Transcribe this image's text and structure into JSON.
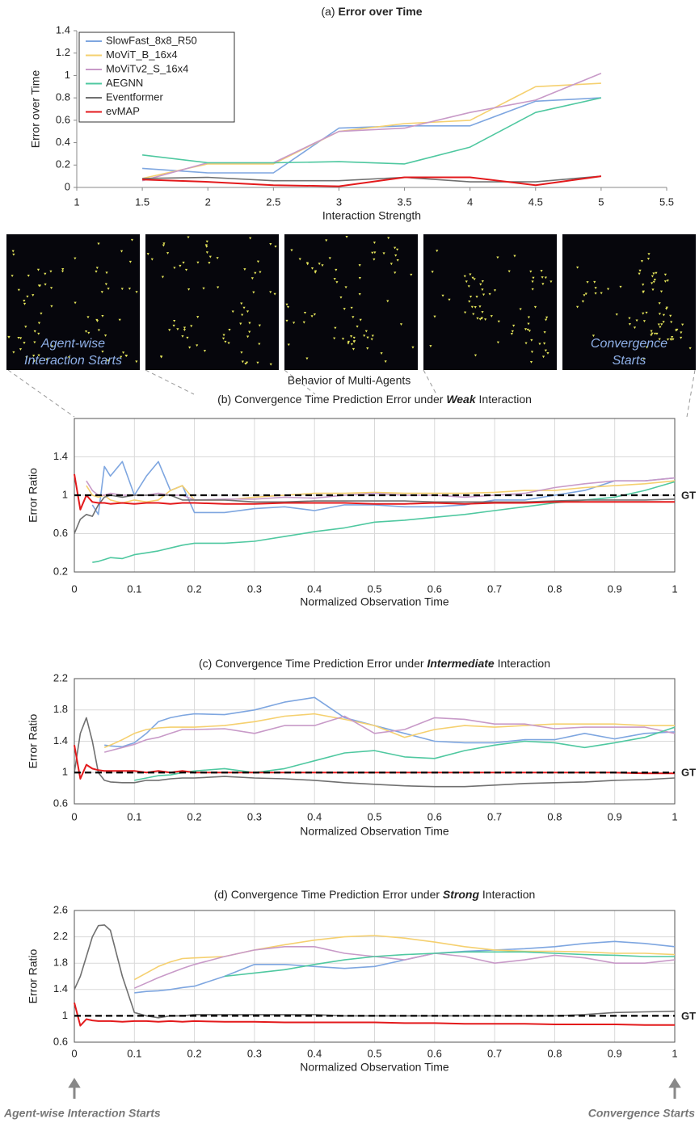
{
  "agent_frames": {
    "title": "Behavior of Multi-Agents",
    "first_frame_caption": [
      "Agent-wise",
      "Interaction Starts"
    ],
    "last_frame_caption": [
      "Convergence",
      "Starts"
    ]
  },
  "chart_data": [
    {
      "type": "line",
      "title": [
        "(a) ",
        "Error over Time"
      ],
      "title_emphasis": "bold",
      "x_label": "Interaction Strength",
      "y_label": "Error over Time",
      "x": [
        1.5,
        2,
        2.5,
        3,
        3.5,
        4,
        4.5,
        5
      ],
      "xlim": [
        1,
        5.5
      ],
      "xticks": [
        1,
        1.5,
        2,
        2.5,
        3,
        3.5,
        4,
        4.5,
        5,
        5.5
      ],
      "ylim": [
        0,
        1.4
      ],
      "yticks": [
        0,
        0.2,
        0.4,
        0.6,
        0.8,
        1,
        1.2,
        1.4
      ],
      "grid": false,
      "legend": "top-left",
      "series": [
        {
          "name": "SlowFast_8x8_R50",
          "color": "#7ea6e0",
          "values": [
            0.17,
            0.13,
            0.13,
            0.53,
            0.55,
            0.55,
            0.77,
            0.8
          ]
        },
        {
          "name": "MoViT_B_16x4",
          "color": "#f5d06f",
          "values": [
            0.08,
            0.21,
            0.21,
            0.5,
            0.57,
            0.6,
            0.9,
            0.93
          ]
        },
        {
          "name": "MoViTv2_S_16x4",
          "color": "#c89ac8",
          "values": [
            0.06,
            0.22,
            0.22,
            0.5,
            0.53,
            0.67,
            0.78,
            1.02
          ]
        },
        {
          "name": "AEGNN",
          "color": "#4fc8a0",
          "values": [
            0.29,
            0.22,
            0.22,
            0.23,
            0.21,
            0.36,
            0.67,
            0.8
          ]
        },
        {
          "name": "Eventformer",
          "color": "#707070",
          "values": [
            0.08,
            0.09,
            0.06,
            0.06,
            0.09,
            0.05,
            0.05,
            0.1
          ]
        },
        {
          "name": "evMAP",
          "color": "#e31a1c",
          "values": [
            0.07,
            0.05,
            0.02,
            0.01,
            0.09,
            0.09,
            0.02,
            0.1
          ]
        }
      ]
    },
    {
      "type": "line",
      "title": [
        "(b) Convergence Time Prediction Error under ",
        "Weak",
        " Interaction"
      ],
      "title_emphasis": "bold-italic",
      "x_label": "Normalized Observation Time",
      "y_label": "Error Ratio",
      "x": [
        0,
        0.01,
        0.02,
        0.03,
        0.04,
        0.05,
        0.06,
        0.08,
        0.1,
        0.12,
        0.14,
        0.16,
        0.18,
        0.2,
        0.25,
        0.3,
        0.35,
        0.4,
        0.45,
        0.5,
        0.55,
        0.6,
        0.65,
        0.7,
        0.75,
        0.8,
        0.85,
        0.9,
        0.95,
        1
      ],
      "xlim": [
        0,
        1
      ],
      "xticks": [
        0,
        0.1,
        0.2,
        0.3,
        0.4,
        0.5,
        0.6,
        0.7,
        0.8,
        0.9,
        1
      ],
      "ylim": [
        0.2,
        1.8
      ],
      "yticks": [
        0.2,
        0.6,
        1,
        1.4
      ],
      "grid": true,
      "reference": {
        "value": 1,
        "label": "GT"
      },
      "series": [
        {
          "color": "#7ea6e0",
          "values": [
            null,
            null,
            null,
            0.9,
            0.8,
            1.3,
            1.2,
            1.35,
            1.0,
            1.2,
            1.35,
            1.05,
            1.1,
            0.82,
            0.82,
            0.86,
            0.88,
            0.84,
            0.9,
            0.9,
            0.88,
            0.88,
            0.9,
            0.95,
            0.95,
            1.0,
            1.05,
            1.15,
            1.15,
            1.18
          ]
        },
        {
          "color": "#f5d06f",
          "values": [
            null,
            null,
            1.1,
            1.0,
            0.98,
            1.0,
            0.95,
            0.92,
            0.95,
            0.93,
            0.95,
            1.05,
            1.1,
            0.95,
            0.95,
            0.98,
            1.0,
            1.02,
            1.02,
            1.03,
            1.02,
            1.02,
            1.02,
            1.03,
            1.05,
            1.05,
            1.08,
            1.1,
            1.12,
            1.15
          ]
        },
        {
          "color": "#c89ac8",
          "values": [
            null,
            null,
            1.15,
            1.05,
            1.0,
            1.0,
            1.02,
            1.0,
            1.0,
            1.0,
            1.02,
            1.0,
            1.0,
            0.95,
            0.96,
            0.96,
            0.98,
            0.97,
            1.0,
            1.02,
            1.0,
            1.0,
            0.98,
            1.0,
            1.02,
            1.08,
            1.12,
            1.15,
            1.15,
            1.18
          ]
        },
        {
          "color": "#4fc8a0",
          "values": [
            null,
            null,
            null,
            0.3,
            0.31,
            0.33,
            0.35,
            0.34,
            0.38,
            0.4,
            0.42,
            0.45,
            0.48,
            0.5,
            0.5,
            0.52,
            0.57,
            0.62,
            0.66,
            0.72,
            0.74,
            0.77,
            0.8,
            0.84,
            0.88,
            0.92,
            0.95,
            0.98,
            1.05,
            1.14
          ]
        },
        {
          "color": "#707070",
          "values": [
            0.6,
            0.75,
            0.8,
            0.78,
            0.9,
            0.98,
            1.0,
            0.98,
            1.0,
            1.0,
            1.0,
            1.0,
            0.95,
            0.95,
            0.95,
            0.93,
            0.93,
            0.94,
            0.94,
            0.94,
            0.94,
            0.93,
            0.93,
            0.93,
            0.93,
            0.94,
            0.95,
            0.95,
            0.95,
            0.96
          ]
        },
        {
          "color": "#e31a1c",
          "values": [
            1.22,
            0.85,
            1.0,
            0.93,
            0.92,
            0.92,
            0.91,
            0.92,
            0.91,
            0.92,
            0.92,
            0.91,
            0.92,
            0.92,
            0.91,
            0.91,
            0.92,
            0.92,
            0.92,
            0.91,
            0.91,
            0.92,
            0.91,
            0.92,
            0.92,
            0.93,
            0.93,
            0.93,
            0.93,
            0.93
          ]
        }
      ]
    },
    {
      "type": "line",
      "title": [
        "(c) Convergence Time Prediction Error under ",
        "Intermediate",
        " Interaction"
      ],
      "title_emphasis": "bold-italic",
      "x_label": "Normalized Observation Time",
      "y_label": "Error Ratio",
      "x": [
        0,
        0.01,
        0.02,
        0.03,
        0.04,
        0.05,
        0.06,
        0.08,
        0.1,
        0.12,
        0.14,
        0.16,
        0.18,
        0.2,
        0.25,
        0.3,
        0.35,
        0.4,
        0.45,
        0.5,
        0.55,
        0.6,
        0.65,
        0.7,
        0.75,
        0.8,
        0.85,
        0.9,
        0.95,
        1
      ],
      "xlim": [
        0,
        1
      ],
      "xticks": [
        0,
        0.1,
        0.2,
        0.3,
        0.4,
        0.5,
        0.6,
        0.7,
        0.8,
        0.9,
        1
      ],
      "ylim": [
        0.6,
        2.2
      ],
      "yticks": [
        0.6,
        1,
        1.4,
        1.8,
        2.2
      ],
      "grid": true,
      "reference": {
        "value": 1,
        "label": "GT"
      },
      "series": [
        {
          "color": "#7ea6e0",
          "values": [
            null,
            null,
            null,
            null,
            null,
            1.35,
            1.34,
            1.33,
            1.38,
            1.5,
            1.65,
            1.7,
            1.73,
            1.75,
            1.74,
            1.8,
            1.9,
            1.96,
            1.7,
            1.6,
            1.5,
            1.4,
            1.38,
            1.38,
            1.42,
            1.42,
            1.5,
            1.43,
            1.5,
            1.52
          ]
        },
        {
          "color": "#f5d06f",
          "values": [
            null,
            null,
            null,
            null,
            null,
            1.32,
            1.35,
            1.42,
            1.5,
            1.55,
            1.57,
            1.58,
            1.58,
            1.58,
            1.6,
            1.65,
            1.72,
            1.75,
            1.68,
            1.6,
            1.45,
            1.55,
            1.6,
            1.58,
            1.6,
            1.62,
            1.62,
            1.62,
            1.6,
            1.6
          ]
        },
        {
          "color": "#c89ac8",
          "values": [
            null,
            null,
            null,
            null,
            null,
            1.26,
            1.28,
            1.32,
            1.36,
            1.42,
            1.45,
            1.5,
            1.55,
            1.55,
            1.56,
            1.5,
            1.6,
            1.6,
            1.72,
            1.5,
            1.55,
            1.7,
            1.68,
            1.62,
            1.62,
            1.56,
            1.58,
            1.58,
            1.58,
            1.5
          ]
        },
        {
          "color": "#4fc8a0",
          "values": [
            null,
            null,
            null,
            null,
            null,
            null,
            null,
            null,
            0.9,
            0.93,
            0.96,
            0.97,
            1.0,
            1.02,
            1.05,
            1.0,
            1.05,
            1.15,
            1.25,
            1.28,
            1.2,
            1.18,
            1.28,
            1.35,
            1.4,
            1.38,
            1.32,
            1.38,
            1.45,
            1.58
          ]
        },
        {
          "color": "#707070",
          "values": [
            1.0,
            1.5,
            1.7,
            1.4,
            1.0,
            0.9,
            0.88,
            0.87,
            0.87,
            0.9,
            0.9,
            0.92,
            0.93,
            0.93,
            0.95,
            0.93,
            0.92,
            0.9,
            0.87,
            0.85,
            0.83,
            0.82,
            0.82,
            0.84,
            0.86,
            0.87,
            0.88,
            0.9,
            0.91,
            0.93
          ]
        },
        {
          "color": "#e31a1c",
          "values": [
            1.35,
            0.92,
            1.1,
            1.05,
            1.03,
            1.02,
            1.02,
            1.02,
            1.02,
            1.0,
            1.02,
            1.0,
            1.02,
            1.0,
            1.0,
            1.0,
            1.0,
            1.0,
            1.0,
            1.0,
            1.0,
            1.0,
            1.0,
            1.0,
            1.0,
            1.0,
            1.0,
            1.0,
            0.99,
            0.99
          ]
        }
      ]
    },
    {
      "type": "line",
      "title": [
        "(d) Convergence Time Prediction Error under ",
        "Strong",
        " Interaction"
      ],
      "title_emphasis": "bold-italic",
      "x_label": "Normalized Observation Time",
      "y_label": "Error Ratio",
      "x": [
        0,
        0.01,
        0.02,
        0.03,
        0.04,
        0.05,
        0.06,
        0.08,
        0.1,
        0.12,
        0.14,
        0.16,
        0.18,
        0.2,
        0.25,
        0.3,
        0.35,
        0.4,
        0.45,
        0.5,
        0.55,
        0.6,
        0.65,
        0.7,
        0.75,
        0.8,
        0.85,
        0.9,
        0.95,
        1
      ],
      "xlim": [
        0,
        1
      ],
      "xticks": [
        0,
        0.1,
        0.2,
        0.3,
        0.4,
        0.5,
        0.6,
        0.7,
        0.8,
        0.9,
        1
      ],
      "ylim": [
        0.6,
        2.6
      ],
      "yticks": [
        0.6,
        1,
        1.4,
        1.8,
        2.2,
        2.6
      ],
      "grid": true,
      "reference": {
        "value": 1,
        "label": "GT"
      },
      "annotations": [
        "Agent-wise Interaction Starts",
        "Convergence Starts"
      ],
      "series": [
        {
          "color": "#7ea6e0",
          "values": [
            null,
            null,
            null,
            null,
            null,
            null,
            null,
            null,
            1.35,
            1.37,
            1.38,
            1.4,
            1.43,
            1.45,
            1.6,
            1.78,
            1.78,
            1.75,
            1.72,
            1.75,
            1.85,
            1.95,
            1.98,
            2.0,
            2.02,
            2.05,
            2.1,
            2.13,
            2.1,
            2.05
          ]
        },
        {
          "color": "#f5d06f",
          "values": [
            null,
            null,
            null,
            null,
            null,
            null,
            null,
            null,
            1.55,
            1.65,
            1.75,
            1.82,
            1.87,
            1.88,
            1.9,
            2.0,
            2.08,
            2.15,
            2.2,
            2.22,
            2.18,
            2.12,
            2.05,
            2.0,
            1.98,
            1.98,
            1.97,
            1.95,
            1.95,
            1.93
          ]
        },
        {
          "color": "#c89ac8",
          "values": [
            null,
            null,
            null,
            null,
            null,
            null,
            null,
            null,
            1.42,
            1.5,
            1.58,
            1.65,
            1.72,
            1.78,
            1.9,
            2.0,
            2.05,
            2.05,
            1.95,
            1.9,
            1.85,
            1.95,
            1.9,
            1.8,
            1.85,
            1.92,
            1.88,
            1.8,
            1.8,
            1.85
          ]
        },
        {
          "color": "#4fc8a0",
          "values": [
            null,
            null,
            null,
            null,
            null,
            null,
            null,
            null,
            null,
            null,
            null,
            null,
            null,
            null,
            1.6,
            1.65,
            1.7,
            1.78,
            1.85,
            1.9,
            1.93,
            1.95,
            1.97,
            1.97,
            1.97,
            1.95,
            1.93,
            1.92,
            1.9,
            1.9
          ]
        },
        {
          "color": "#707070",
          "values": [
            1.4,
            1.6,
            1.9,
            2.2,
            2.37,
            2.38,
            2.3,
            1.6,
            1.05,
            1.0,
            0.97,
            1.0,
            1.0,
            1.02,
            1.02,
            1.02,
            1.02,
            1.02,
            1.0,
            1.0,
            1.0,
            1.0,
            1.0,
            1.0,
            1.0,
            1.0,
            1.02,
            1.05,
            1.06,
            1.07
          ]
        },
        {
          "color": "#e31a1c",
          "values": [
            1.2,
            0.85,
            0.95,
            0.93,
            0.92,
            0.92,
            0.92,
            0.91,
            0.92,
            0.92,
            0.91,
            0.92,
            0.91,
            0.92,
            0.91,
            0.91,
            0.9,
            0.9,
            0.9,
            0.9,
            0.89,
            0.89,
            0.88,
            0.88,
            0.88,
            0.87,
            0.87,
            0.87,
            0.86,
            0.86
          ]
        }
      ]
    }
  ]
}
